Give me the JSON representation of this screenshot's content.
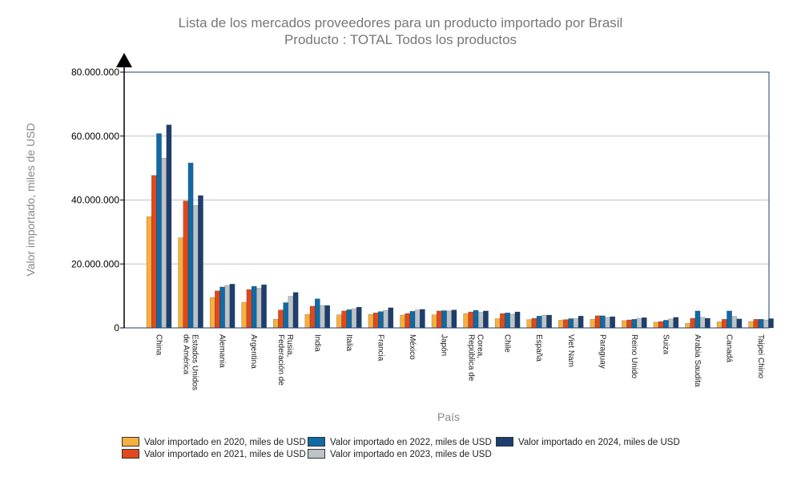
{
  "chart_data": {
    "type": "bar",
    "title": "Lista de los mercados proveedores para un producto importado por Brasil",
    "subtitle": "Producto : TOTAL Todos los productos",
    "xlabel": "País",
    "ylabel": "Valor importado, miles de USD",
    "ylim": [
      0,
      80000000
    ],
    "yticks": [
      {
        "value": 0,
        "label": "0"
      },
      {
        "value": 20000000,
        "label": "20.000.000"
      },
      {
        "value": 40000000,
        "label": "40.000.000"
      },
      {
        "value": 60000000,
        "label": "60.000.000"
      },
      {
        "value": 80000000,
        "label": "80.000.000"
      }
    ],
    "grid": "horizontal",
    "legend_position": "bottom",
    "categories": [
      [
        "China"
      ],
      [
        "Estados Unidos",
        "de América"
      ],
      [
        "Alemania"
      ],
      [
        "Argentina"
      ],
      [
        "Rusia,",
        "Federación de"
      ],
      [
        "India"
      ],
      [
        "Italia"
      ],
      [
        "Francia"
      ],
      [
        "México"
      ],
      [
        "Japón"
      ],
      [
        "Corea,",
        "República de"
      ],
      [
        "Chile"
      ],
      [
        "España"
      ],
      [
        "Viet Nam"
      ],
      [
        "Paraguay"
      ],
      [
        "Reino Unido"
      ],
      [
        "Suiza"
      ],
      [
        "Arabia Saudita"
      ],
      [
        "Canadá"
      ],
      [
        "Taipei Chino"
      ]
    ],
    "series": [
      {
        "name": "Valor importado en 2020, miles de USD",
        "color": "#f5b041",
        "values": [
          34800000,
          28200000,
          9500000,
          8000000,
          2700000,
          4200000,
          4100000,
          4200000,
          4000000,
          4100000,
          4500000,
          2900000,
          2600000,
          2400000,
          2700000,
          2300000,
          1800000,
          1400000,
          1900000,
          2000000
        ]
      },
      {
        "name": "Valor importado en 2021, miles de USD",
        "color": "#e0491c",
        "values": [
          47700000,
          39700000,
          11600000,
          12000000,
          5600000,
          6800000,
          5300000,
          4700000,
          4500000,
          5300000,
          5000000,
          4500000,
          3000000,
          2600000,
          3800000,
          2500000,
          2000000,
          3000000,
          2700000,
          2700000
        ]
      },
      {
        "name": "Valor importado en 2022, miles de USD",
        "color": "#0f6aa5",
        "values": [
          60800000,
          51600000,
          12800000,
          13000000,
          7900000,
          9100000,
          5700000,
          5100000,
          5200000,
          5400000,
          5500000,
          4700000,
          3700000,
          2900000,
          3800000,
          2700000,
          2400000,
          5300000,
          5300000,
          2700000
        ]
      },
      {
        "name": "Valor importado en 2023, miles de USD",
        "color": "#bdc3c7",
        "values": [
          53100000,
          38300000,
          13300000,
          12400000,
          9900000,
          7000000,
          6000000,
          5500000,
          5600000,
          5300000,
          4900000,
          4300000,
          4000000,
          2900000,
          3300000,
          3000000,
          2800000,
          3300000,
          3600000,
          2500000
        ]
      },
      {
        "name": "Valor importado en 2024, miles de USD",
        "color": "#1d3f6e",
        "values": [
          63500000,
          41400000,
          13700000,
          13500000,
          11100000,
          7000000,
          6500000,
          6300000,
          5800000,
          5600000,
          5300000,
          5000000,
          4000000,
          3700000,
          3500000,
          3200000,
          3300000,
          3000000,
          2800000,
          2900000
        ]
      }
    ]
  }
}
